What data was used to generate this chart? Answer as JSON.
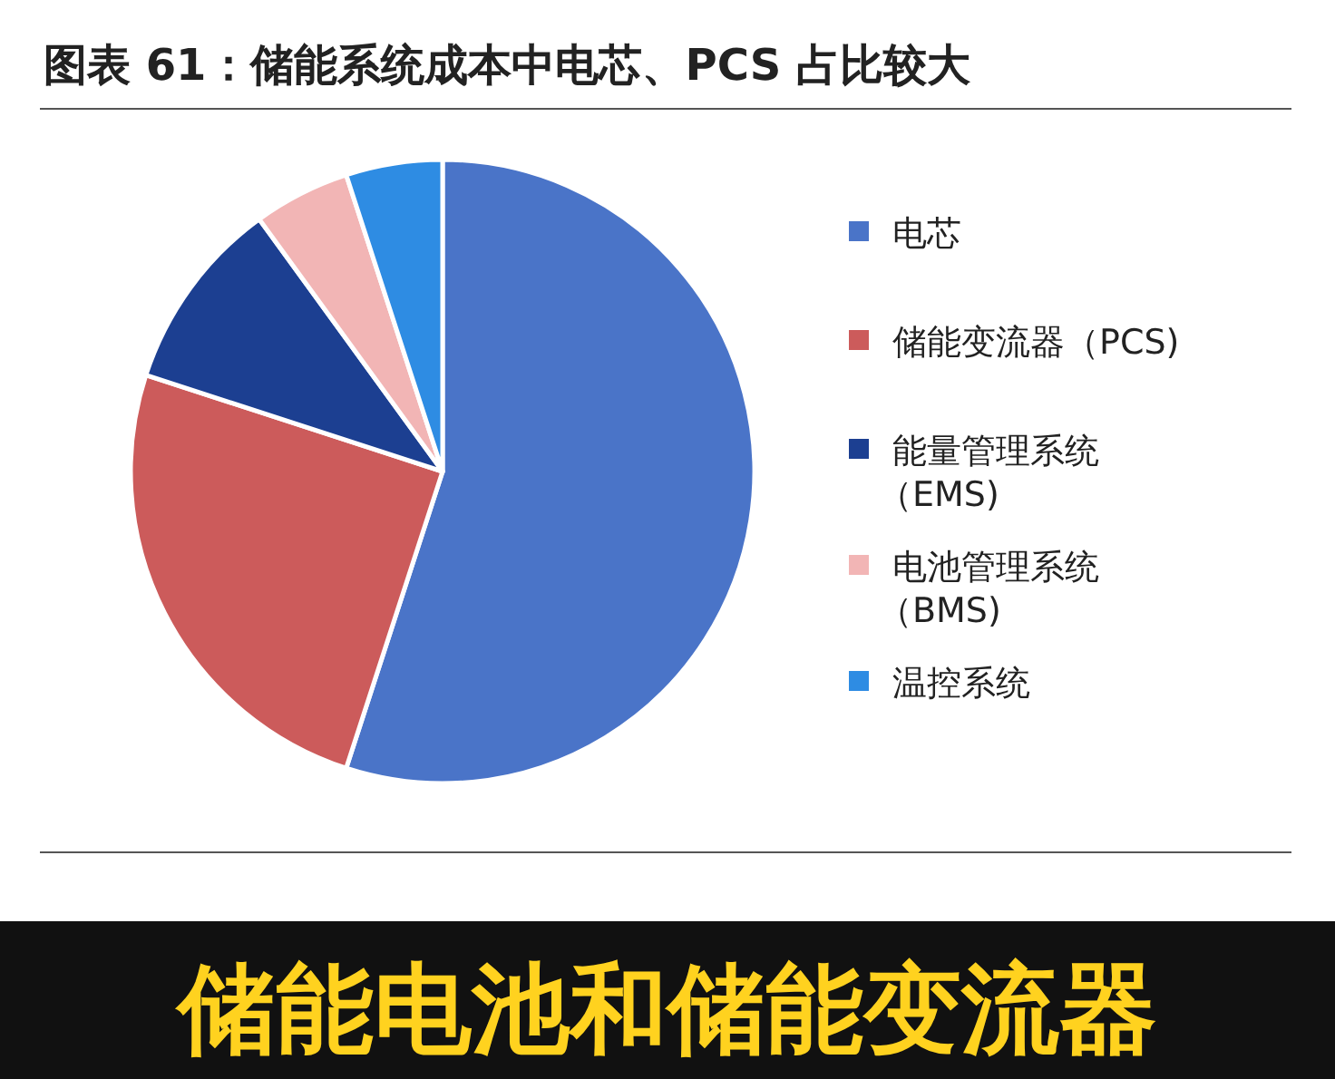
{
  "chart_data": {
    "type": "pie",
    "title": "图表 61：储能系统成本中电芯、PCS 占比较大",
    "categories": [
      "电芯",
      "储能变流器（PCS)",
      "能量管理系统（EMS)",
      "电池管理系统（BMS)",
      "温控系统"
    ],
    "values": [
      55,
      25,
      10,
      5,
      5
    ],
    "colors": [
      "#4a74c8",
      "#cc5b5b",
      "#1c3f91",
      "#f2b5b5",
      "#2e8ce3"
    ],
    "legend": "right",
    "annotations": [
      "储能电池和储能变流器"
    ]
  }
}
